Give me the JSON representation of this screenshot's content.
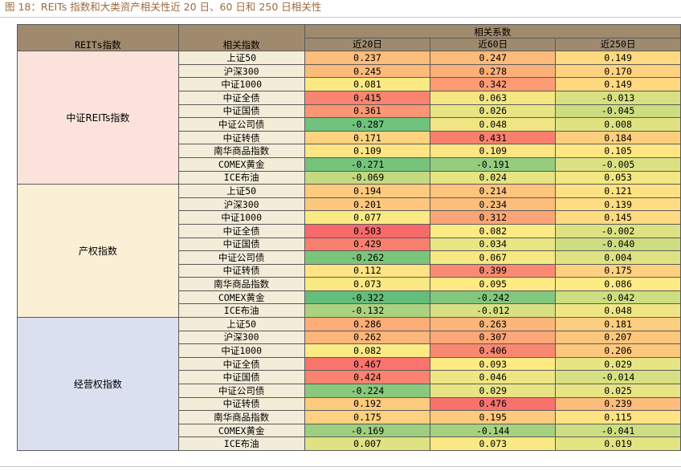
{
  "title": "图 18：REITs 指数和大类资产相关性近 20 日、60 日和 250 日相关性",
  "header": {
    "col_group": "REITs指数",
    "col_index": "相关指数",
    "col_span": "相关系数",
    "periods": [
      "近20日",
      "近60日",
      "近250日"
    ]
  },
  "colors": {
    "header_bg": "#a08a6d",
    "index_bg": "#f3ecd8",
    "scale_neg": "#63be7b",
    "scale_mid": "#ffeb84",
    "scale_pos": "#f8696b"
  },
  "groups": [
    {
      "name": "中证REITs指数",
      "bg": "#fbe3dc",
      "rows": [
        {
          "index": "上证50",
          "values": [
            "0.237",
            "0.247",
            "0.149"
          ]
        },
        {
          "index": "沪深300",
          "values": [
            "0.245",
            "0.278",
            "0.170"
          ]
        },
        {
          "index": "中证1000",
          "values": [
            "0.081",
            "0.342",
            "0.149"
          ]
        },
        {
          "index": "中证全债",
          "values": [
            "0.415",
            "0.063",
            "-0.013"
          ]
        },
        {
          "index": "中证国债",
          "values": [
            "0.361",
            "0.026",
            "-0.045"
          ]
        },
        {
          "index": "中证公司债",
          "values": [
            "-0.287",
            "0.048",
            "0.008"
          ]
        },
        {
          "index": "中证转债",
          "values": [
            "0.171",
            "0.431",
            "0.184"
          ]
        },
        {
          "index": "南华商品指数",
          "values": [
            "0.109",
            "0.109",
            "0.105"
          ]
        },
        {
          "index": "COMEX黄金",
          "values": [
            "-0.271",
            "-0.191",
            "-0.005"
          ]
        },
        {
          "index": "ICE布油",
          "values": [
            "-0.069",
            "0.024",
            "0.053"
          ]
        }
      ]
    },
    {
      "name": "产权指数",
      "bg": "#fbf0d6",
      "rows": [
        {
          "index": "上证50",
          "values": [
            "0.194",
            "0.214",
            "0.121"
          ]
        },
        {
          "index": "沪深300",
          "values": [
            "0.201",
            "0.234",
            "0.139"
          ]
        },
        {
          "index": "中证1000",
          "values": [
            "0.077",
            "0.312",
            "0.145"
          ]
        },
        {
          "index": "中证全债",
          "values": [
            "0.503",
            "0.082",
            "-0.002"
          ]
        },
        {
          "index": "中证国债",
          "values": [
            "0.429",
            "0.034",
            "-0.040"
          ]
        },
        {
          "index": "中证公司债",
          "values": [
            "-0.262",
            "0.067",
            "0.004"
          ]
        },
        {
          "index": "中证转债",
          "values": [
            "0.112",
            "0.399",
            "0.175"
          ]
        },
        {
          "index": "南华商品指数",
          "values": [
            "0.073",
            "0.095",
            "0.086"
          ]
        },
        {
          "index": "COMEX黄金",
          "values": [
            "-0.322",
            "-0.242",
            "-0.042"
          ]
        },
        {
          "index": "ICE布油",
          "values": [
            "-0.132",
            "-0.012",
            "0.048"
          ]
        }
      ]
    },
    {
      "name": "经营权指数",
      "bg": "#dbe0f1",
      "rows": [
        {
          "index": "上证50",
          "values": [
            "0.286",
            "0.263",
            "0.181"
          ]
        },
        {
          "index": "沪深300",
          "values": [
            "0.262",
            "0.307",
            "0.207"
          ]
        },
        {
          "index": "中证1000",
          "values": [
            "0.082",
            "0.406",
            "0.206"
          ]
        },
        {
          "index": "中证全债",
          "values": [
            "0.467",
            "0.093",
            "0.029"
          ]
        },
        {
          "index": "中证国债",
          "values": [
            "0.424",
            "0.046",
            "-0.014"
          ]
        },
        {
          "index": "中证公司债",
          "values": [
            "-0.224",
            "0.029",
            "0.025"
          ]
        },
        {
          "index": "中证转债",
          "values": [
            "0.192",
            "0.476",
            "0.239"
          ]
        },
        {
          "index": "南华商品指数",
          "values": [
            "0.175",
            "0.195",
            "0.115"
          ]
        },
        {
          "index": "COMEX黄金",
          "values": [
            "-0.169",
            "-0.144",
            "-0.041"
          ]
        },
        {
          "index": "ICE布油",
          "values": [
            "0.007",
            "0.073",
            "0.019"
          ]
        }
      ]
    }
  ]
}
